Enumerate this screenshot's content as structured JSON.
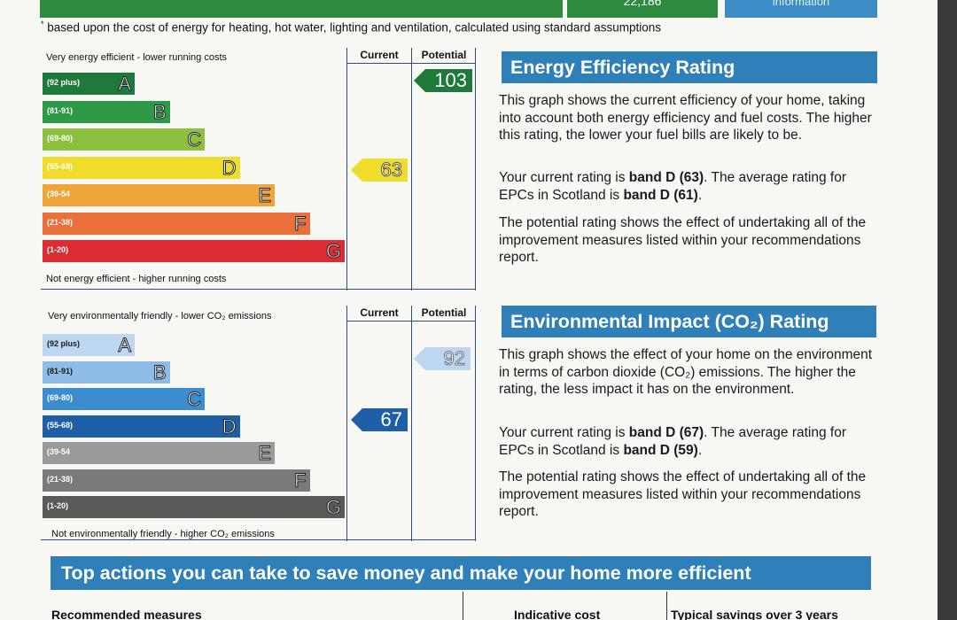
{
  "header": {
    "top_value": "22,186",
    "info_label": "information",
    "footnote_marker": "*",
    "footnote": "based upon the cost of energy for heating, hot water, lighting and ventilation, calculated using standard assumptions"
  },
  "energy_chart": {
    "col_current": "Current",
    "col_potential": "Potential",
    "top_caption": "Very energy efficient - lower running costs",
    "bottom_caption": "Not energy efficient - higher running costs",
    "bands": [
      {
        "range": "(92 plus)",
        "letter": "A",
        "color": "#1f7a3a"
      },
      {
        "range": "(81-91)",
        "letter": "B",
        "color": "#2d9a47"
      },
      {
        "range": "(69-80)",
        "letter": "C",
        "color": "#8cc03e"
      },
      {
        "range": "(55-68)",
        "letter": "D",
        "color": "#f0dc2a"
      },
      {
        "range": "(39-54",
        "letter": "E",
        "color": "#f0a53a"
      },
      {
        "range": "(21-38)",
        "letter": "F",
        "color": "#e9703a"
      },
      {
        "range": "(1-20)",
        "letter": "G",
        "color": "#dd2c34"
      }
    ],
    "current": "63",
    "current_color": "#f0dc2a",
    "potential": "103",
    "potential_color": "#1f7a3a"
  },
  "energy_panel": {
    "title": "Energy Efficiency Rating",
    "p1": "This graph shows the current efficiency of your home, taking into account both energy efficiency and fuel costs. The higher this rating, the lower your fuel bills are likely to be.",
    "p2_pre": "Your current rating is ",
    "p2_band": "band D (63)",
    "p2_mid": ". The average rating for EPCs in Scotland is ",
    "p2_avg": "band D (61)",
    "p2_end": ".",
    "p3": "The potential rating shows the effect of undertaking all of the improvement measures listed within your recommendations report."
  },
  "env_chart": {
    "col_current": "Current",
    "col_potential": "Potential",
    "top_caption": "Very environmentally friendly - lower CO₂ emissions",
    "bottom_caption": "Not environmentally friendly - higher CO₂ emissions",
    "bands": [
      {
        "range": "(92 plus)",
        "letter": "A",
        "color": "#bcd7ef"
      },
      {
        "range": "(81-91)",
        "letter": "B",
        "color": "#8dbde6"
      },
      {
        "range": "(69-80)",
        "letter": "C",
        "color": "#3c8dd0"
      },
      {
        "range": "(55-68)",
        "letter": "D",
        "color": "#1f5fa8"
      },
      {
        "range": "(39-54",
        "letter": "E",
        "color": "#9a9a9a"
      },
      {
        "range": "(21-38)",
        "letter": "F",
        "color": "#7a7a7a"
      },
      {
        "range": "(1-20)",
        "letter": "G",
        "color": "#595959"
      }
    ],
    "current": "67",
    "current_color": "#1f5fa8",
    "potential": "92",
    "potential_color": "#bcd7ef"
  },
  "env_panel": {
    "title": "Environmental Impact (CO₂) Rating",
    "p1": "This graph shows the effect of your home on the environment in terms of carbon dioxide (CO₂) emissions. The higher the rating, the less impact it has on the environment.",
    "p2_pre": "Your current rating is ",
    "p2_band": "band D (67)",
    "p2_mid": ". The average rating for EPCs in Scotland is ",
    "p2_avg": "band D (59)",
    "p2_end": ".",
    "p3": "The potential rating shows the effect of undertaking all of the improvement measures listed within your recommendations report."
  },
  "actions": {
    "title": "Top actions you can take to save money and make your home more efficient",
    "col1": "Recommended measures",
    "col2": "Indicative cost",
    "col3": "Typical savings over 3 years"
  }
}
